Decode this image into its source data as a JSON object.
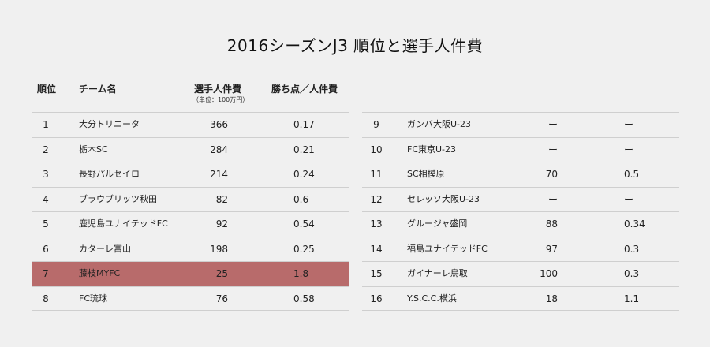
{
  "title": "2016シーズンJ3 順位と選手人件費",
  "headers": {
    "rank": "順位",
    "team": "チーム名",
    "salary": "選手人件費",
    "salary_unit": "（単位：100万円）",
    "ratio": "勝ち点／人件費"
  },
  "left_rows": [
    {
      "rank": "1",
      "team": "大分トリニータ",
      "salary": "366",
      "ratio": "0.17"
    },
    {
      "rank": "2",
      "team": "栃木SC",
      "salary": "284",
      "ratio": "0.21"
    },
    {
      "rank": "3",
      "team": "長野パルセイロ",
      "salary": "214",
      "ratio": "0.24"
    },
    {
      "rank": "4",
      "team": "ブラウブリッツ秋田",
      "salary": "82",
      "ratio": "0.6"
    },
    {
      "rank": "5",
      "team": "鹿児島ユナイテッドFC",
      "salary": "92",
      "ratio": "0.54"
    },
    {
      "rank": "6",
      "team": "カターレ富山",
      "salary": "198",
      "ratio": "0.25"
    },
    {
      "rank": "7",
      "team": "藤枝MYFC",
      "salary": "25",
      "ratio": "1.8",
      "highlight": true
    },
    {
      "rank": "8",
      "team": "FC琉球",
      "salary": "76",
      "ratio": "0.58"
    }
  ],
  "right_rows": [
    {
      "rank": "9",
      "team": "ガンバ大阪U-23",
      "salary": "ー",
      "ratio": "ー"
    },
    {
      "rank": "10",
      "team": "FC東京U-23",
      "salary": "ー",
      "ratio": "ー"
    },
    {
      "rank": "11",
      "team": "SC相模原",
      "salary": "70",
      "ratio": "0.5"
    },
    {
      "rank": "12",
      "team": "セレッソ大阪U-23",
      "salary": "ー",
      "ratio": "ー"
    },
    {
      "rank": "13",
      "team": "グルージャ盛岡",
      "salary": "88",
      "ratio": "0.34"
    },
    {
      "rank": "14",
      "team": "福島ユナイテッドFC",
      "salary": "97",
      "ratio": "0.3"
    },
    {
      "rank": "15",
      "team": "ガイナーレ鳥取",
      "salary": "100",
      "ratio": "0.3"
    },
    {
      "rank": "16",
      "team": "Y.S.C.C.横浜",
      "salary": "18",
      "ratio": "1.1"
    }
  ],
  "colors": {
    "highlight": "#b86b6b",
    "background": "#f0f0f0",
    "rule": "#cfcfcf"
  }
}
